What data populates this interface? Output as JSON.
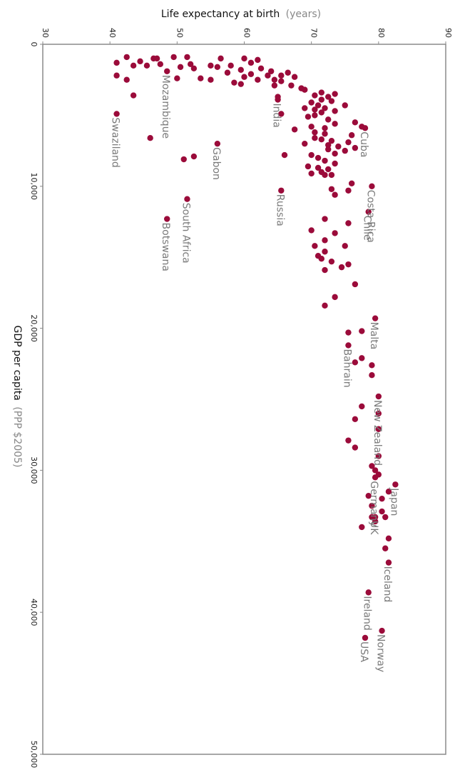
{
  "chart_data": {
    "type": "scatter",
    "title": "",
    "ylabel": "Life expectancy at birth",
    "ylabel_unit": "(years)",
    "xlabel": "GDP per capita",
    "xlabel_unit": "(PPP $2005)",
    "ylim": [
      30,
      90
    ],
    "xlim": [
      0,
      50000
    ],
    "y_ticks": [
      30,
      40,
      50,
      60,
      70,
      80,
      90
    ],
    "x_ticks": [
      0,
      10000,
      20000,
      30000,
      40000,
      50000
    ],
    "x_tick_labels": [
      "0",
      "10,000",
      "20,000",
      "30,000",
      "40,000",
      "50,000"
    ],
    "y_tick_labels": [
      "30",
      "40",
      "50",
      "60",
      "70",
      "80",
      "90"
    ],
    "orientation": "rotated-90-clockwise",
    "grid": false,
    "marker_color": "#9b0b3a",
    "label_color": "#7a7a7a",
    "labeled_points": [
      {
        "name": "Swaziland",
        "x": 4900,
        "y": 41.0
      },
      {
        "name": "Mozambique",
        "x": 1900,
        "y": 48.5
      },
      {
        "name": "India",
        "x": 3900,
        "y": 65.0
      },
      {
        "name": "Gabon",
        "x": 7000,
        "y": 56.0
      },
      {
        "name": "Cuba",
        "x": 5900,
        "y": 78.0
      },
      {
        "name": "Russia",
        "x": 10300,
        "y": 65.5
      },
      {
        "name": "South Africa",
        "x": 10900,
        "y": 51.5
      },
      {
        "name": "Botswana",
        "x": 12300,
        "y": 48.5
      },
      {
        "name": "Costa Rica",
        "x": 10000,
        "y": 79.0
      },
      {
        "name": "Chile",
        "x": 11800,
        "y": 78.5
      },
      {
        "name": "Malta",
        "x": 19300,
        "y": 79.5
      },
      {
        "name": "Bahrain",
        "x": 21200,
        "y": 75.5
      },
      {
        "name": "New Zealand",
        "x": 24800,
        "y": 80.0
      },
      {
        "name": "Germany",
        "x": 30500,
        "y": 79.5
      },
      {
        "name": "Japan",
        "x": 31000,
        "y": 82.5
      },
      {
        "name": "UK",
        "x": 33300,
        "y": 79.5
      },
      {
        "name": "Iceland",
        "x": 36500,
        "y": 81.5
      },
      {
        "name": "Ireland",
        "x": 38600,
        "y": 78.5
      },
      {
        "name": "Norway",
        "x": 41300,
        "y": 80.5
      },
      {
        "name": "USA",
        "x": 41800,
        "y": 78.0
      }
    ],
    "points": [
      [
        900,
        42.5
      ],
      [
        1000,
        46.5
      ],
      [
        1000,
        47.0
      ],
      [
        900,
        49.5
      ],
      [
        900,
        51.5
      ],
      [
        1000,
        56.5
      ],
      [
        1000,
        60.0
      ],
      [
        1100,
        62.0
      ],
      [
        1200,
        44.5
      ],
      [
        1300,
        41.0
      ],
      [
        1400,
        47.5
      ],
      [
        1400,
        52.0
      ],
      [
        1500,
        55.0
      ],
      [
        1500,
        58.0
      ],
      [
        1300,
        61.0
      ],
      [
        1500,
        43.5
      ],
      [
        1500,
        45.5
      ],
      [
        1600,
        50.5
      ],
      [
        1700,
        52.5
      ],
      [
        1600,
        56.0
      ],
      [
        1800,
        59.5
      ],
      [
        1700,
        62.5
      ],
      [
        1900,
        64.0
      ],
      [
        2000,
        66.5
      ],
      [
        2000,
        57.5
      ],
      [
        2100,
        61.0
      ],
      [
        2200,
        63.5
      ],
      [
        2200,
        65.5
      ],
      [
        2300,
        60.0
      ],
      [
        2200,
        41.0
      ],
      [
        2400,
        50.0
      ],
      [
        2400,
        53.5
      ],
      [
        2500,
        55.0
      ],
      [
        2500,
        42.5
      ],
      [
        2500,
        64.5
      ],
      [
        2600,
        65.5
      ],
      [
        2700,
        58.5
      ],
      [
        2800,
        59.5
      ],
      [
        2900,
        67.0
      ],
      [
        3100,
        68.5
      ],
      [
        2300,
        67.5
      ],
      [
        2500,
        62.0
      ],
      [
        2900,
        64.5
      ],
      [
        3200,
        69.0
      ],
      [
        3400,
        71.5
      ],
      [
        3500,
        73.5
      ],
      [
        3600,
        43.5
      ],
      [
        3600,
        70.5
      ],
      [
        3700,
        72.5
      ],
      [
        3700,
        65.0
      ],
      [
        3900,
        71.5
      ],
      [
        4000,
        73.0
      ],
      [
        4100,
        70.0
      ],
      [
        4300,
        75.0
      ],
      [
        4300,
        71.0
      ],
      [
        4500,
        69.0
      ],
      [
        4500,
        72.0
      ],
      [
        4600,
        70.5
      ],
      [
        4700,
        73.5
      ],
      [
        4800,
        71.5
      ],
      [
        4900,
        65.5
      ],
      [
        5000,
        70.5
      ],
      [
        5100,
        69.5
      ],
      [
        5300,
        72.5
      ],
      [
        5500,
        76.5
      ],
      [
        5600,
        73.5
      ],
      [
        5800,
        70.0
      ],
      [
        5900,
        72.0
      ],
      [
        6000,
        67.5
      ],
      [
        6200,
        70.5
      ],
      [
        6300,
        72.0
      ],
      [
        6400,
        76.0
      ],
      [
        6600,
        70.5
      ],
      [
        6700,
        71.5
      ],
      [
        6800,
        73.0
      ],
      [
        6900,
        75.5
      ],
      [
        7000,
        69.0
      ],
      [
        7100,
        72.5
      ],
      [
        7200,
        74.0
      ],
      [
        7300,
        76.5
      ],
      [
        7400,
        72.5
      ],
      [
        7500,
        75.0
      ],
      [
        7700,
        73.5
      ],
      [
        7800,
        66.0
      ],
      [
        7800,
        70.0
      ],
      [
        7900,
        52.5
      ],
      [
        8100,
        51.0
      ],
      [
        8000,
        71.0
      ],
      [
        8200,
        72.0
      ],
      [
        8400,
        73.5
      ],
      [
        8600,
        69.5
      ],
      [
        8800,
        72.5
      ],
      [
        9000,
        71.5
      ],
      [
        9200,
        73.0
      ],
      [
        9200,
        72.0
      ],
      [
        9800,
        76.0
      ],
      [
        10200,
        73.0
      ],
      [
        10300,
        75.5
      ],
      [
        10600,
        73.5
      ],
      [
        12300,
        72.0
      ],
      [
        12600,
        75.5
      ],
      [
        13100,
        70.0
      ],
      [
        13300,
        73.5
      ],
      [
        13800,
        72.0
      ],
      [
        14200,
        75.0
      ],
      [
        14200,
        70.5
      ],
      [
        14600,
        72.0
      ],
      [
        14900,
        71.0
      ],
      [
        15100,
        71.5
      ],
      [
        15300,
        73.0
      ],
      [
        15500,
        75.5
      ],
      [
        15700,
        74.5
      ],
      [
        15900,
        72.0
      ],
      [
        16900,
        76.5
      ],
      [
        17800,
        73.5
      ],
      [
        18400,
        72.0
      ],
      [
        20200,
        77.5
      ],
      [
        20300,
        75.5
      ],
      [
        22100,
        77.5
      ],
      [
        22600,
        79.0
      ],
      [
        22400,
        76.5
      ],
      [
        23300,
        79.0
      ],
      [
        25500,
        77.5
      ],
      [
        26000,
        80.0
      ],
      [
        26400,
        76.5
      ],
      [
        27100,
        80.0
      ],
      [
        27900,
        75.5
      ],
      [
        28400,
        76.5
      ],
      [
        29000,
        80.0
      ],
      [
        29700,
        79.0
      ],
      [
        30000,
        79.5
      ],
      [
        30300,
        80.0
      ],
      [
        31500,
        81.5
      ],
      [
        31800,
        78.5
      ],
      [
        32000,
        80.5
      ],
      [
        32500,
        79.0
      ],
      [
        32900,
        80.5
      ],
      [
        33300,
        79.0
      ],
      [
        33300,
        81.0
      ],
      [
        33600,
        79.5
      ],
      [
        34000,
        77.5
      ],
      [
        34800,
        81.5
      ],
      [
        35500,
        81.0
      ],
      [
        5800,
        77.5
      ],
      [
        6600,
        46.0
      ],
      [
        8700,
        71.0
      ],
      [
        9100,
        70.0
      ]
    ]
  }
}
